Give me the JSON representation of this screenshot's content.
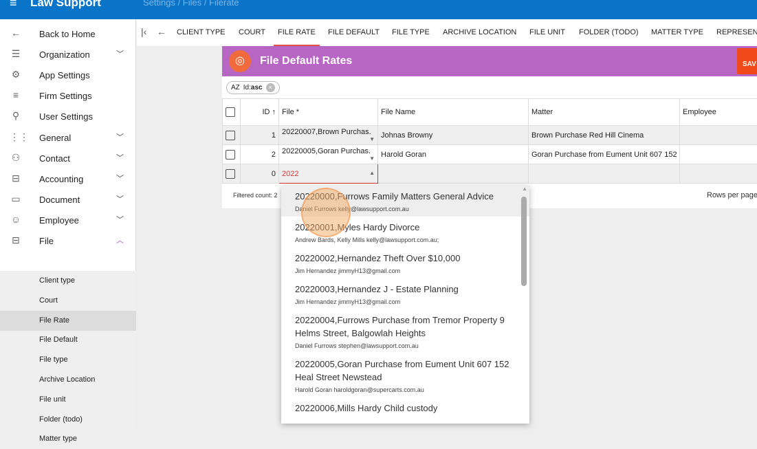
{
  "header": {
    "app": "Law Support",
    "breadcrumb": "Settings / Files / Filerate"
  },
  "sidebar": {
    "items": [
      {
        "label": "Back to Home",
        "icon": "arrow-left-icon",
        "glyph": "←"
      },
      {
        "label": "Organization",
        "icon": "tune-icon",
        "glyph": "☰",
        "chev": "⌄"
      },
      {
        "label": "App Settings",
        "icon": "settings-box-icon",
        "glyph": "⚙"
      },
      {
        "label": "Firm Settings",
        "icon": "playlist-add-icon",
        "glyph": "≡"
      },
      {
        "label": "User Settings",
        "icon": "person-add-icon",
        "glyph": "⚲"
      },
      {
        "label": "General",
        "icon": "grid-icon",
        "glyph": "⋮⋮",
        "chev": "⌄"
      },
      {
        "label": "Contact",
        "icon": "people-icon",
        "glyph": "⚇",
        "chev": "⌄"
      },
      {
        "label": "Accounting",
        "icon": "briefcase-icon",
        "glyph": "⊟",
        "chev": "⌄"
      },
      {
        "label": "Document",
        "icon": "document-icon",
        "glyph": "▭",
        "chev": "⌄"
      },
      {
        "label": "Employee",
        "icon": "face-icon",
        "glyph": "☺",
        "chev": "⌄"
      },
      {
        "label": "File",
        "icon": "briefcase-icon",
        "glyph": "⊟",
        "chev": "^"
      }
    ],
    "subitems": [
      "Client type",
      "Court",
      "File Rate",
      "File Default",
      "File type",
      "Archive Location",
      "File unit",
      "Folder (todo)",
      "Matter type"
    ]
  },
  "tabs": [
    "CLIENT TYPE",
    "COURT",
    "FILE RATE",
    "FILE DEFAULT",
    "FILE TYPE",
    "ARCHIVE LOCATION",
    "FILE UNIT",
    "FOLDER (TODO)",
    "MATTER TYPE",
    "REPRESENT"
  ],
  "card": {
    "title": "File Default Rates",
    "save": "SAV",
    "sort_chip": {
      "field": "Id:",
      "dir": "asc",
      "icon": "AZ"
    },
    "columns": [
      "ID",
      "File *",
      "File Name",
      "Matter",
      "Employee"
    ],
    "rows": [
      {
        "id": "1",
        "file": "20220007,Brown Purchas.",
        "file_name": "Johnas Browny",
        "matter": "Brown Purchase Red Hill Cinema",
        "employee": ""
      },
      {
        "id": "2",
        "file": "20220005,Goran Purchas.",
        "file_name": "Harold Goran",
        "matter": "Goran Purchase from Eument Unit 607 152",
        "employee": ""
      },
      {
        "id": "0",
        "file": "2022",
        "file_name": "",
        "matter": "",
        "employee": ""
      }
    ],
    "filtered_count": "Filtered count: 2",
    "rows_per_page": "Rows per page"
  },
  "dropdown": [
    {
      "title": "20220000,Furrows Family Matters General Advice",
      "sub": "Daniel Furrows kelly@lawsupport.com.au"
    },
    {
      "title": "20220001,Myles Hardy Divorce",
      "sub": "Andrew Bards, Kelly Mills kelly@lawsupport.com.au;"
    },
    {
      "title": "20220002,Hernandez Theft Over $10,000",
      "sub": "Jim Hernandez jimmyH13@gmail.com"
    },
    {
      "title": "20220003,Hernandez J - Estate Planning",
      "sub": "Jim Hernandez jimmyH13@gmail.com"
    },
    {
      "title": "20220004,Furrows Purchase from Tremor Property 9 Helms Street, Balgowlah Heights",
      "sub": "Daniel Furrows stephen@lawsupport.com.au"
    },
    {
      "title": "20220005,Goran Purchase from Eument Unit 607 152 Heal Street Newstead",
      "sub": "Harold Goran haroldgoran@supercarts.com.au"
    },
    {
      "title": "20220006,Mills Hardy Child custody",
      "sub": ""
    }
  ],
  "colors": {
    "header": "#0a74c9",
    "card_header": "#b866c4",
    "save": "#f04a1a",
    "badge": "#f06a3c"
  }
}
